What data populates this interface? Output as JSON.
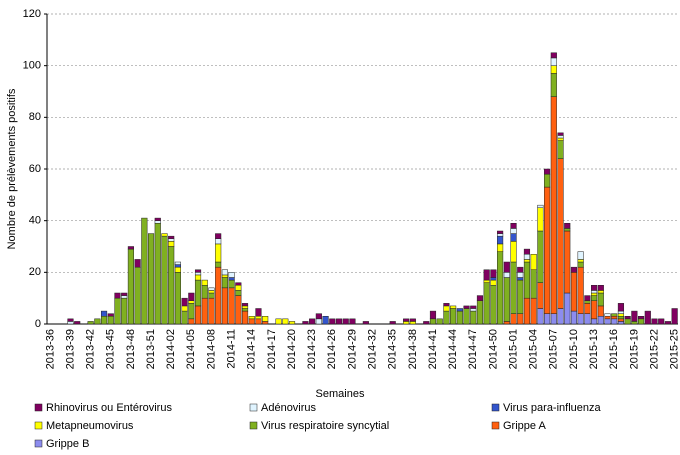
{
  "chart_data": {
    "type": "stacked_bar",
    "xlabel": "Semaines",
    "ylabel": "Nombre de prélèvements positifs",
    "categories": [
      "2013-36",
      null,
      null,
      "2013-39",
      null,
      null,
      "2013-42",
      null,
      null,
      "2013-45",
      null,
      null,
      "2013-48",
      null,
      null,
      "2013-51",
      null,
      null,
      "2014-02",
      null,
      null,
      "2014-05",
      null,
      null,
      "2014-08",
      null,
      null,
      "2014-11",
      null,
      null,
      "2014-14",
      null,
      null,
      "2014-17",
      null,
      null,
      "2014-20",
      null,
      null,
      "2014-23",
      null,
      null,
      "2014-26",
      null,
      null,
      "2014-29",
      null,
      null,
      "2014-32",
      null,
      null,
      "2014-35",
      null,
      null,
      "2014-38",
      null,
      null,
      "2014-41",
      null,
      null,
      "2014-44",
      null,
      null,
      "2014-47",
      null,
      null,
      "2014-50",
      null,
      null,
      "2015-01",
      null,
      null,
      "2015-04",
      null,
      null,
      "2015-07",
      null,
      null,
      "2015-10",
      null,
      null,
      "2015-13",
      null,
      null,
      "2015-16",
      null,
      null,
      "2015-19",
      null,
      null,
      "2015-22",
      null,
      null,
      "2015-25"
    ],
    "series": [
      {
        "name": "Rhinovirus ou Entérovirus",
        "color": "#800060",
        "values": [
          0,
          0,
          0,
          1,
          1,
          0,
          0,
          0,
          0,
          1,
          2,
          1,
          1,
          3,
          0,
          0,
          1,
          0,
          1,
          0,
          3,
          3,
          1,
          0,
          0,
          2,
          0,
          0,
          1,
          1,
          0,
          3,
          0,
          0,
          0,
          0,
          0,
          0,
          1,
          2,
          2,
          0,
          2,
          2,
          2,
          2,
          0,
          1,
          0,
          0,
          0,
          1,
          0,
          1,
          1,
          0,
          1,
          3,
          0,
          1,
          0,
          0,
          1,
          1,
          2,
          4,
          3,
          1,
          4,
          2,
          2,
          2,
          0,
          0,
          2,
          2,
          1,
          2,
          2,
          0,
          2,
          2,
          2,
          0,
          0,
          3,
          1,
          4,
          1,
          5,
          2,
          2,
          1,
          6
        ]
      },
      {
        "name": "Adénovirus",
        "color": "#e0f4ff",
        "values": [
          0,
          0,
          0,
          1,
          0,
          0,
          0,
          0,
          0,
          0,
          0,
          1,
          0,
          0,
          0,
          0,
          1,
          0,
          1,
          1,
          0,
          0,
          1,
          0,
          1,
          2,
          2,
          2,
          0,
          0,
          0,
          0,
          0,
          0,
          0,
          0,
          0,
          0,
          0,
          0,
          2,
          0,
          0,
          0,
          0,
          0,
          0,
          0,
          0,
          0,
          0,
          0,
          0,
          0,
          0,
          0,
          0,
          0,
          0,
          0,
          0,
          0,
          0,
          1,
          0,
          0,
          0,
          1,
          2,
          2,
          2,
          2,
          0,
          1,
          0,
          3,
          1,
          0,
          0,
          3,
          0,
          1,
          0,
          1,
          0,
          1,
          0,
          0,
          0,
          0,
          0,
          0,
          0,
          0
        ]
      },
      {
        "name": "Virus para-influenza",
        "color": "#3355cc",
        "values": [
          0,
          0,
          0,
          0,
          0,
          0,
          0,
          0,
          2,
          0,
          0,
          0,
          0,
          0,
          0,
          0,
          0,
          0,
          0,
          1,
          0,
          0,
          0,
          0,
          0,
          0,
          0,
          1,
          0,
          0,
          0,
          0,
          0,
          0,
          0,
          0,
          0,
          0,
          0,
          0,
          0,
          3,
          0,
          0,
          0,
          0,
          0,
          0,
          0,
          0,
          0,
          0,
          0,
          0,
          0,
          0,
          0,
          0,
          0,
          0,
          0,
          1,
          0,
          0,
          0,
          0,
          1,
          3,
          0,
          3,
          1,
          0,
          0,
          0,
          0,
          0,
          0,
          0,
          0,
          0,
          0,
          0,
          0,
          0,
          0,
          0,
          0,
          0,
          0,
          0,
          0,
          0,
          0,
          0
        ]
      },
      {
        "name": "Metapneumovirus",
        "color": "#ffff00",
        "values": [
          0,
          0,
          0,
          0,
          0,
          0,
          0,
          0,
          0,
          0,
          0,
          0,
          0,
          0,
          0,
          0,
          0,
          1,
          2,
          2,
          2,
          1,
          2,
          2,
          1,
          7,
          1,
          0,
          2,
          1,
          1,
          1,
          2,
          0,
          2,
          2,
          1,
          0,
          0,
          0,
          0,
          0,
          0,
          0,
          0,
          0,
          0,
          0,
          0,
          0,
          0,
          0,
          0,
          1,
          1,
          0,
          0,
          0,
          0,
          2,
          1,
          0,
          0,
          0,
          0,
          1,
          2,
          3,
          0,
          8,
          0,
          1,
          6,
          9,
          0,
          3,
          1,
          0,
          0,
          1,
          0,
          1,
          1,
          0,
          0,
          1,
          0,
          0,
          0,
          0,
          0,
          0,
          0,
          0
        ]
      },
      {
        "name": "Virus respiratoire syncytial",
        "color": "#80b020",
        "values": [
          0,
          0,
          0,
          0,
          0,
          0,
          1,
          2,
          3,
          3,
          10,
          10,
          29,
          22,
          41,
          35,
          39,
          34,
          30,
          20,
          5,
          6,
          10,
          5,
          2,
          2,
          4,
          3,
          2,
          1,
          0,
          0,
          0,
          0,
          0,
          0,
          0,
          0,
          0,
          0,
          0,
          0,
          0,
          0,
          0,
          0,
          0,
          0,
          0,
          0,
          0,
          0,
          0,
          0,
          0,
          0,
          0,
          2,
          2,
          5,
          6,
          5,
          6,
          5,
          9,
          16,
          15,
          28,
          17,
          20,
          13,
          14,
          11,
          20,
          5,
          9,
          7,
          1,
          0,
          2,
          1,
          2,
          5,
          0,
          1,
          1,
          2,
          1,
          2,
          0,
          0,
          0,
          0,
          0
        ]
      },
      {
        "name": "Grippe A",
        "color": "#ff6010",
        "values": [
          0,
          0,
          0,
          0,
          0,
          0,
          0,
          0,
          0,
          0,
          0,
          0,
          0,
          0,
          0,
          0,
          0,
          0,
          0,
          0,
          0,
          2,
          7,
          10,
          10,
          22,
          14,
          14,
          11,
          5,
          2,
          2,
          1,
          0,
          0,
          0,
          0,
          0,
          0,
          0,
          0,
          0,
          0,
          0,
          0,
          0,
          0,
          0,
          0,
          0,
          0,
          0,
          0,
          0,
          0,
          0,
          0,
          0,
          0,
          0,
          0,
          0,
          0,
          0,
          0,
          0,
          0,
          0,
          1,
          4,
          4,
          10,
          10,
          10,
          49,
          84,
          58,
          24,
          15,
          18,
          4,
          7,
          4,
          1,
          1,
          1,
          0,
          0,
          0,
          0,
          0,
          0,
          0,
          0
        ]
      },
      {
        "name": "Grippe B",
        "color": "#8c8cee",
        "values": [
          0,
          0,
          0,
          0,
          0,
          0,
          0,
          0,
          0,
          0,
          0,
          0,
          0,
          0,
          0,
          0,
          0,
          0,
          0,
          0,
          0,
          0,
          0,
          0,
          0,
          0,
          0,
          0,
          0,
          0,
          0,
          0,
          0,
          0,
          0,
          0,
          0,
          0,
          0,
          0,
          0,
          0,
          0,
          0,
          0,
          0,
          0,
          0,
          0,
          0,
          0,
          0,
          0,
          0,
          0,
          0,
          0,
          0,
          0,
          0,
          0,
          0,
          0,
          0,
          0,
          0,
          0,
          0,
          0,
          0,
          0,
          0,
          0,
          6,
          4,
          4,
          6,
          12,
          5,
          4,
          4,
          2,
          3,
          2,
          2,
          1,
          0,
          0,
          0,
          0,
          0,
          0,
          0,
          0
        ]
      }
    ],
    "ylim": [
      0,
      120
    ],
    "yticks": [
      0,
      20,
      40,
      60,
      80,
      100,
      120
    ],
    "grid": true,
    "legend_position": "bottom"
  }
}
